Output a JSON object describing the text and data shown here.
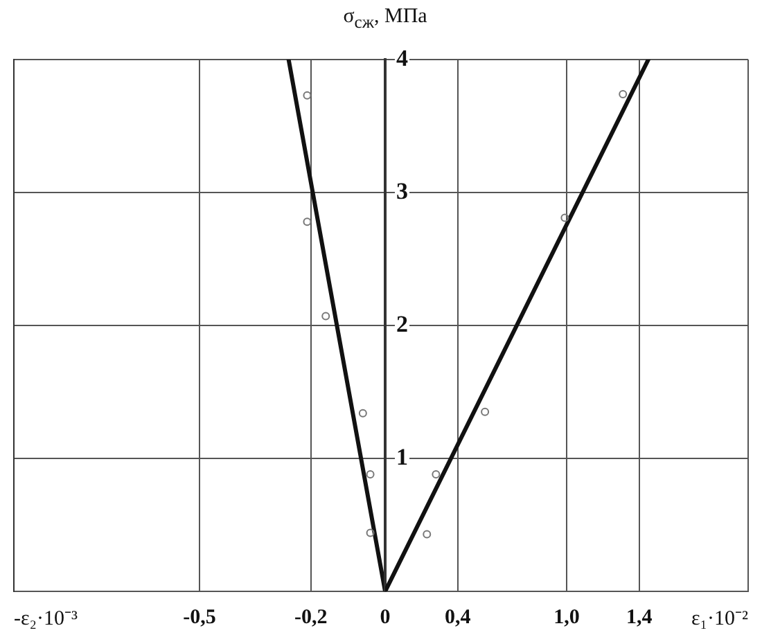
{
  "chart_data": [
    {
      "type": "scatter",
      "xlabel": "-ε₂·10⁻³",
      "xlim": [
        -1.0,
        0
      ],
      "xticks": [
        {
          "value": -1.0,
          "label": null
        },
        {
          "value": -0.5,
          "label": "-0,5"
        },
        {
          "value": -0.2,
          "label": "-0,2"
        },
        0
      ],
      "ylim": [
        0,
        4
      ],
      "yticks": [
        1,
        2,
        3,
        4
      ],
      "tick_labels": "x",
      "grid": true,
      "legend": false,
      "series": [
        {
          "type": "scatter",
          "color": "#777777",
          "marker": "circle",
          "x": [
            -0.21,
            -0.21,
            -0.16,
            -0.06,
            -0.04,
            -0.04
          ],
          "values": [
            3.73,
            2.78,
            2.07,
            1.34,
            0.88,
            0.44
          ]
        },
        {
          "type": "line",
          "color": "#111111",
          "marker": "none",
          "line_style": "solid",
          "x": [
            0,
            -0.26
          ],
          "values": [
            0,
            4
          ]
        }
      ]
    },
    {
      "type": "scatter",
      "xlabel": "ε₁·10⁻²",
      "ylabel": "σ$_{сж}$, МПа",
      "xlim": [
        0,
        2.0
      ],
      "xticks": [
        {
          "value": 0.4,
          "label": "0,4"
        },
        {
          "value": 1.0,
          "label": "1,0"
        },
        {
          "value": 1.4,
          "label": "1,4"
        },
        {
          "value": 2.0,
          "label": null
        }
      ],
      "ylim": [
        0,
        4
      ],
      "yticks": [
        1,
        2,
        3,
        4
      ],
      "grid": true,
      "legend": false,
      "series": [
        {
          "type": "scatter",
          "color": "#777777",
          "marker": "circle",
          "x": [
            1.31,
            0.99,
            0.55,
            0.28,
            0.23
          ],
          "values": [
            3.74,
            2.81,
            1.35,
            0.88,
            0.43
          ]
        },
        {
          "type": "line",
          "color": "#111111",
          "marker": "none",
          "line_style": "solid",
          "x": [
            0,
            1.45
          ],
          "values": [
            0,
            4
          ]
        }
      ]
    }
  ]
}
